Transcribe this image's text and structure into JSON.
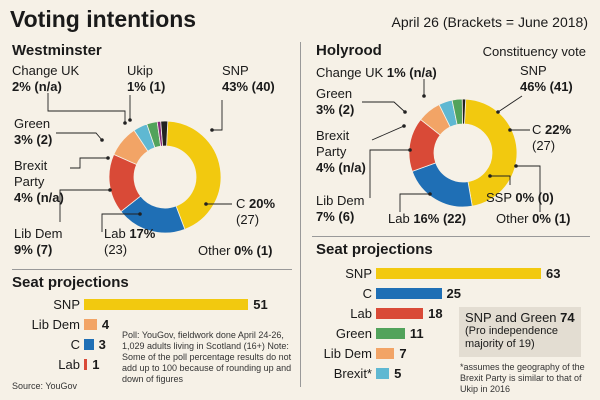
{
  "header": {
    "title": "Voting intentions",
    "subtitle": "April 26 (Brackets = June 2018)"
  },
  "colors": {
    "SNP": "#f2c90f",
    "C": "#1f6fb5",
    "Lab": "#d94a37",
    "LibDem": "#f2a466",
    "Green": "#52a35b",
    "Brexit": "#5fb8d2",
    "Ukip": "#8a2b7c",
    "ChangeUK": "#222222",
    "Other": "#888888"
  },
  "westminster": {
    "title": "Westminster",
    "labels": {
      "changeuk_name": "Change UK",
      "changeuk_val": "2% (n/a)",
      "ukip_name": "Ukip",
      "ukip_val": "1% (1)",
      "snp_name": "SNP",
      "snp_val": "43% (40)",
      "green_name": "Green",
      "green_val": "3% (2)",
      "brexit_name1": "Brexit",
      "brexit_name2": "Party",
      "brexit_val": "4% (n/a)",
      "c_name": "C",
      "c_pct": "20%",
      "c_prev": "(27)",
      "libdem_name": "Lib Dem",
      "libdem_val": "9% (7)",
      "lab_name": "Lab",
      "lab_pct": "17%",
      "lab_prev": "(23)",
      "other_name": "Other",
      "other_val": "0% (1)"
    }
  },
  "holyrood": {
    "title": "Holyrood",
    "subtitle": "Constituency vote",
    "labels": {
      "changeuk_name": "Change UK",
      "changeuk_val": "1% (n/a)",
      "snp_name": "SNP",
      "snp_val": "46% (41)",
      "green_name": "Green",
      "green_val": "3% (2)",
      "brexit_name1": "Brexit",
      "brexit_name2": "Party",
      "brexit_val": "4% (n/a)",
      "c_name": "C",
      "c_pct": "22%",
      "c_prev": "(27)",
      "ssp_name": "SSP",
      "ssp_val": "0% (0)",
      "libdem_name": "Lib Dem",
      "libdem_val": "7% (6)",
      "lab_name": "Lab",
      "lab_val": "16% (22)",
      "other_name": "Other",
      "other_val": "0% (1)"
    }
  },
  "seats_left": {
    "title": "Seat projections"
  },
  "seats_right": {
    "title": "Seat projections",
    "box_line1": "SNP and Green",
    "box_value": "74",
    "box_line2": "(Pro independence",
    "box_line3": "majority of 19)",
    "footnote": "*assumes the geography of the Brexit Party is similar to that of Ukip in 2016"
  },
  "notes": {
    "poll": "Poll: YouGov, fieldwork done April 24-26, 1,029 adults living in Scotland (16+) Note: Some of the poll percentage results do not add up to 100 because of rounding up and down of figures",
    "source": "Source: YouGov"
  },
  "chart_data": [
    {
      "type": "pie",
      "title": "Westminster",
      "categories": [
        "SNP",
        "C",
        "Lab",
        "Lib Dem",
        "Brexit Party",
        "Green",
        "Ukip",
        "Change UK",
        "Other"
      ],
      "values": [
        43,
        20,
        17,
        9,
        4,
        3,
        1,
        2,
        0
      ],
      "previous": [
        "40",
        "27",
        "23",
        "7",
        "n/a",
        "2",
        "1",
        "n/a",
        "1"
      ]
    },
    {
      "type": "pie",
      "title": "Holyrood",
      "subtitle": "Constituency vote",
      "categories": [
        "SNP",
        "C",
        "Lab",
        "Lib Dem",
        "Brexit Party",
        "Green",
        "Change UK",
        "SSP",
        "Other"
      ],
      "values": [
        46,
        22,
        16,
        7,
        4,
        3,
        1,
        0,
        0
      ],
      "previous": [
        "41",
        "27",
        "22",
        "6",
        "n/a",
        "2",
        "n/a",
        "0",
        "1"
      ]
    },
    {
      "type": "bar",
      "title": "Seat projections",
      "categories": [
        "SNP",
        "Lib Dem",
        "C",
        "Lab"
      ],
      "values": [
        51,
        4,
        3,
        1
      ],
      "colors": [
        "#f2c90f",
        "#f2a466",
        "#1f6fb5",
        "#d94a37"
      ]
    },
    {
      "type": "bar",
      "title": "Seat projections",
      "categories": [
        "SNP",
        "C",
        "Lab",
        "Green",
        "Lib Dem",
        "Brexit*"
      ],
      "values": [
        63,
        25,
        18,
        11,
        7,
        5
      ],
      "colors": [
        "#f2c90f",
        "#1f6fb5",
        "#d94a37",
        "#52a35b",
        "#f2a466",
        "#5fb8d2"
      ]
    }
  ]
}
